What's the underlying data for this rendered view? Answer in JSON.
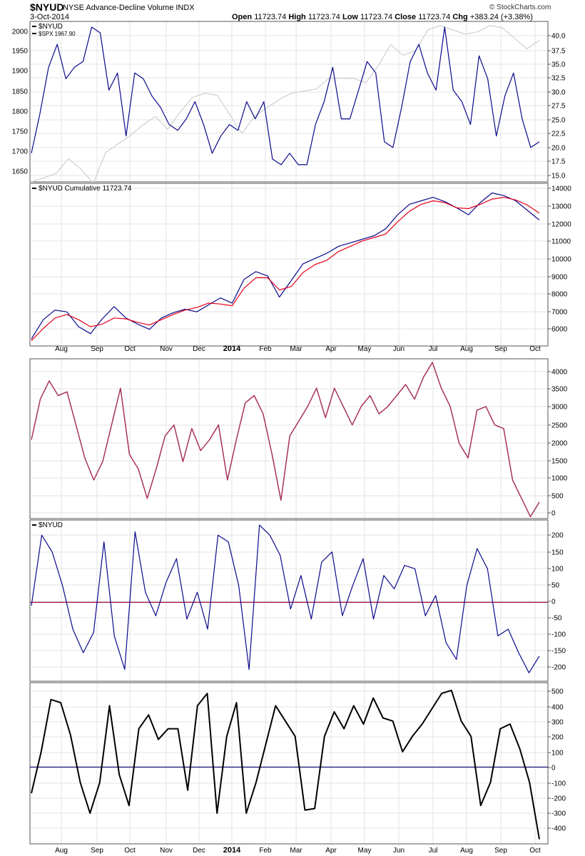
{
  "header": {
    "symbol": "$NYUD",
    "description": "NYSE Advance-Decline Volume INDX",
    "date": "3-Oct-2014",
    "open_label": "Open",
    "open": "11723.74",
    "high_label": "High",
    "high": "11723.74",
    "low_label": "Low",
    "low": "11723.74",
    "close_label": "Close",
    "close": "11723.74",
    "chg_label": "Chg",
    "chg": "+383.24 (+3.38%)",
    "copyright": "© StockCharts.com"
  },
  "colors": {
    "navy": "#0a0a8c",
    "grey": "#cfcfcf",
    "red": "#e2001a",
    "maroon": "#a8325e",
    "black": "#000000",
    "zero_red": "#a01040",
    "zero_navy": "#1a1a7a",
    "grid": "#e3e3e3"
  },
  "x_axis": {
    "labels": [
      "Aug",
      "Sep",
      "Oct",
      "Nov",
      "Dec",
      "2014",
      "Feb",
      "Mar",
      "Apr",
      "May",
      "Jun",
      "Jul",
      "Aug",
      "Sep",
      "Oct"
    ],
    "bold": "2014"
  },
  "chart_data": [
    {
      "type": "line",
      "legend": [
        "$NYUD",
        "$SPX 1967.90"
      ],
      "left_ticks": [
        "2000",
        "1950",
        "1900",
        "1850",
        "1800",
        "1750",
        "1700",
        "1650"
      ],
      "right_ticks": [
        "40.0",
        "37.5",
        "35.0",
        "32.5",
        "30.0",
        "27.5",
        "25.0",
        "22.5",
        "20.0",
        "17.5",
        "15.0"
      ],
      "ylim_left": [
        1635,
        2015
      ],
      "ylim_right": [
        14.0,
        42.0
      ],
      "series": [
        {
          "name": "$SPX 1967.90",
          "axis": "left",
          "values": [
            1635,
            1645,
            1655,
            1690,
            1665,
            1632,
            1705,
            1725,
            1745,
            1770,
            1790,
            1760,
            1800,
            1835,
            1845,
            1840,
            1795,
            1750,
            1790,
            1810,
            1830,
            1845,
            1850,
            1855,
            1880,
            1880,
            1880,
            1870,
            1910,
            1960,
            1935,
            1945,
            1995,
            2005,
            1995,
            1985,
            1990,
            2005,
            2000,
            1975,
            1950,
            1970
          ]
        },
        {
          "name": "$NYUD",
          "axis": "right",
          "values": [
            19,
            26,
            34,
            38,
            32,
            34,
            35,
            41,
            40,
            30,
            33,
            22,
            33,
            32,
            29,
            27,
            24,
            23,
            25,
            28,
            24,
            19,
            22,
            24,
            23,
            28,
            25,
            28,
            18,
            17,
            19,
            17,
            17,
            24,
            28,
            34,
            25,
            25,
            30,
            35,
            33,
            21,
            20,
            27,
            35,
            38,
            33,
            30,
            41,
            30,
            28,
            24,
            36,
            32,
            22,
            29,
            33,
            25,
            20,
            21
          ]
        }
      ]
    },
    {
      "type": "line",
      "legend": [
        "$NYUD Cumulative 11723.74"
      ],
      "right_ticks": [
        "14000",
        "13000",
        "12000",
        "11000",
        "10000",
        "9000",
        "8000",
        "7000",
        "6000"
      ],
      "ylim": [
        5000,
        14300
      ],
      "series": [
        {
          "name": "$NYUD Cumulative 11723.74",
          "values": [
            5400,
            6500,
            7050,
            6950,
            6100,
            5700,
            6550,
            7250,
            6600,
            6250,
            5950,
            6600,
            6900,
            7100,
            6950,
            7350,
            7750,
            7450,
            8800,
            9250,
            9000,
            7800,
            8750,
            9700,
            10000,
            10300,
            10700,
            10900,
            11100,
            11300,
            11700,
            12500,
            13100,
            13300,
            13500,
            13250,
            12900,
            12500,
            13200,
            13750,
            13600,
            13300,
            12750,
            12200
          ]
        },
        {
          "name": "",
          "values": [
            5300,
            6000,
            6600,
            6800,
            6500,
            6100,
            6250,
            6600,
            6550,
            6350,
            6200,
            6500,
            6800,
            7050,
            7200,
            7450,
            7400,
            7300,
            8300,
            8900,
            8900,
            8200,
            8400,
            9200,
            9650,
            9900,
            10400,
            10700,
            11000,
            11200,
            11400,
            12100,
            12700,
            13100,
            13300,
            13200,
            12900,
            12850,
            13100,
            13400,
            13500,
            13350,
            13050,
            12600
          ]
        }
      ]
    },
    {
      "type": "line",
      "right_ticks": [
        "4000",
        "3500",
        "3000",
        "2500",
        "2000",
        "1500",
        "1000",
        "500",
        "0"
      ],
      "ylim": [
        -50,
        4300
      ],
      "series": [
        {
          "name": "",
          "values": [
            2100,
            3200,
            3700,
            3300,
            3400,
            2500,
            1600,
            1000,
            1500,
            2500,
            3500,
            1700,
            1300,
            500,
            1300,
            2200,
            2500,
            1500,
            2400,
            1800,
            2100,
            2500,
            1000,
            2100,
            3100,
            3300,
            2800,
            1700,
            450,
            2200,
            2600,
            3000,
            3500,
            2700,
            3500,
            3000,
            2500,
            3000,
            3300,
            2800,
            3000,
            3300,
            3600,
            3200,
            3800,
            4200,
            3500,
            3000,
            2000,
            1600,
            2900,
            3000,
            2500,
            2400,
            1000,
            500,
            0,
            400
          ]
        }
      ]
    },
    {
      "type": "line",
      "legend": [
        "$NYUD"
      ],
      "right_ticks": [
        "200",
        "150",
        "100",
        "50",
        "0",
        "-50",
        "-100",
        "-150",
        "-200"
      ],
      "ylim": [
        -235,
        245
      ],
      "zero_line": 0,
      "series": [
        {
          "name": "",
          "values": [
            -10,
            200,
            150,
            50,
            -80,
            -150,
            -90,
            180,
            -100,
            -200,
            210,
            30,
            -40,
            60,
            130,
            -50,
            30,
            -80,
            200,
            180,
            50,
            -200,
            230,
            200,
            140,
            -20,
            80,
            -50,
            120,
            150,
            -40,
            50,
            130,
            -50,
            80,
            40,
            110,
            100,
            -40,
            20,
            -120,
            -170,
            50,
            160,
            100,
            -100,
            -80,
            -150,
            -210,
            -160
          ]
        }
      ]
    },
    {
      "type": "line",
      "right_ticks": [
        "500",
        "400",
        "300",
        "200",
        "100",
        "0",
        "-100",
        "-200",
        "-300",
        "-400"
      ],
      "ylim": [
        -500,
        550
      ],
      "zero_line": 0,
      "series": [
        {
          "name": "",
          "values": [
            -170,
            100,
            440,
            420,
            210,
            -100,
            -300,
            -100,
            400,
            -50,
            -250,
            250,
            340,
            180,
            250,
            250,
            -150,
            400,
            480,
            -300,
            200,
            420,
            -300,
            -100,
            150,
            400,
            300,
            200,
            -280,
            -270,
            200,
            360,
            250,
            400,
            280,
            450,
            320,
            300,
            100,
            200,
            280,
            380,
            480,
            500,
            300,
            200,
            -250,
            -100,
            250,
            280,
            120,
            -100,
            -470
          ]
        }
      ]
    }
  ]
}
